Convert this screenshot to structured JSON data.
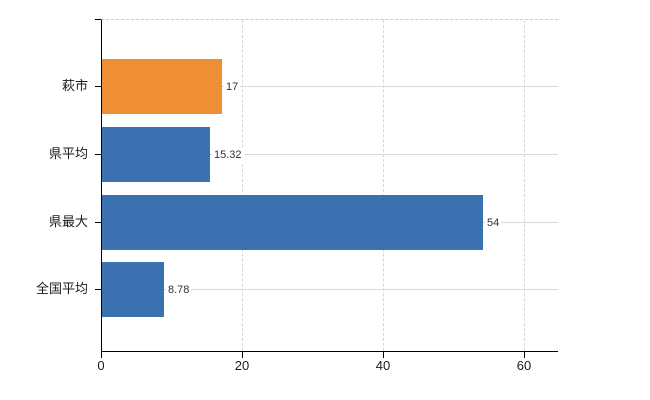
{
  "chart_data": {
    "type": "bar",
    "orientation": "horizontal",
    "title": "",
    "xlabel": "",
    "ylabel": "",
    "categories": [
      "萩市",
      "県平均",
      "県最大",
      "全国平均"
    ],
    "values": [
      17,
      15.32,
      54,
      8.78
    ],
    "value_labels": [
      "17",
      "15.32",
      "54",
      "8.78"
    ],
    "bar_colors": [
      "#ee8e35",
      "#3b70b1",
      "#3b70b1",
      "#3b70b1"
    ],
    "highlight_color": "#ee8e35",
    "series_color": "#3b70b1",
    "x_ticks": [
      0,
      20,
      40,
      60
    ],
    "x_tick_labels": [
      "0",
      "20",
      "40",
      "60"
    ],
    "xlim": [
      0,
      64.7
    ],
    "legend_position": "none",
    "grid": {
      "horizontal_style": "solid",
      "horizontal_color": "#d5dcd5",
      "vertical_style": "dashed",
      "vertical_color": "#d6d6d6",
      "top_border_style": "dashed",
      "top_border_color": "#cccccc"
    },
    "axis_color": "#000000",
    "label_color": "#1a1a1a",
    "value_label_color": "#333333",
    "background_color": "#ffffff"
  }
}
